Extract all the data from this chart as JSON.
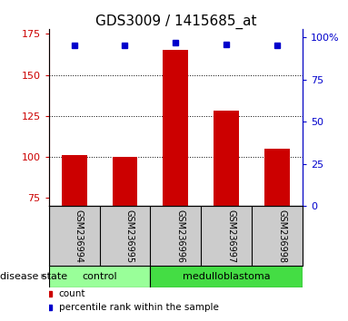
{
  "title": "GDS3009 / 1415685_at",
  "samples": [
    "GSM236994",
    "GSM236995",
    "GSM236996",
    "GSM236997",
    "GSM236998"
  ],
  "counts": [
    101,
    100,
    165,
    128,
    105
  ],
  "percentile_ranks": [
    95,
    95,
    97,
    96,
    95
  ],
  "ylim_left": [
    70,
    178
  ],
  "yticks_left": [
    75,
    100,
    125,
    150,
    175
  ],
  "ylim_right": [
    0,
    105
  ],
  "yticks_right": [
    0,
    25,
    50,
    75,
    100
  ],
  "yticklabels_right": [
    "0",
    "25",
    "50",
    "75",
    "100%"
  ],
  "bar_color": "#cc0000",
  "square_color": "#0000cc",
  "bar_bottom": 70,
  "groups": [
    {
      "label": "control",
      "samples": [
        0,
        1
      ],
      "color": "#99ff99"
    },
    {
      "label": "medulloblastoma",
      "samples": [
        2,
        3,
        4
      ],
      "color": "#44dd44"
    }
  ],
  "group_label_text": "disease state",
  "legend_count_label": "count",
  "legend_pct_label": "percentile rank within the sample",
  "title_fontsize": 11,
  "axis_label_color_left": "#cc0000",
  "axis_label_color_right": "#0000cc",
  "dotted_gridlines": [
    100,
    125,
    150
  ],
  "background_color": "#ffffff",
  "sample_area_color": "#cccccc"
}
